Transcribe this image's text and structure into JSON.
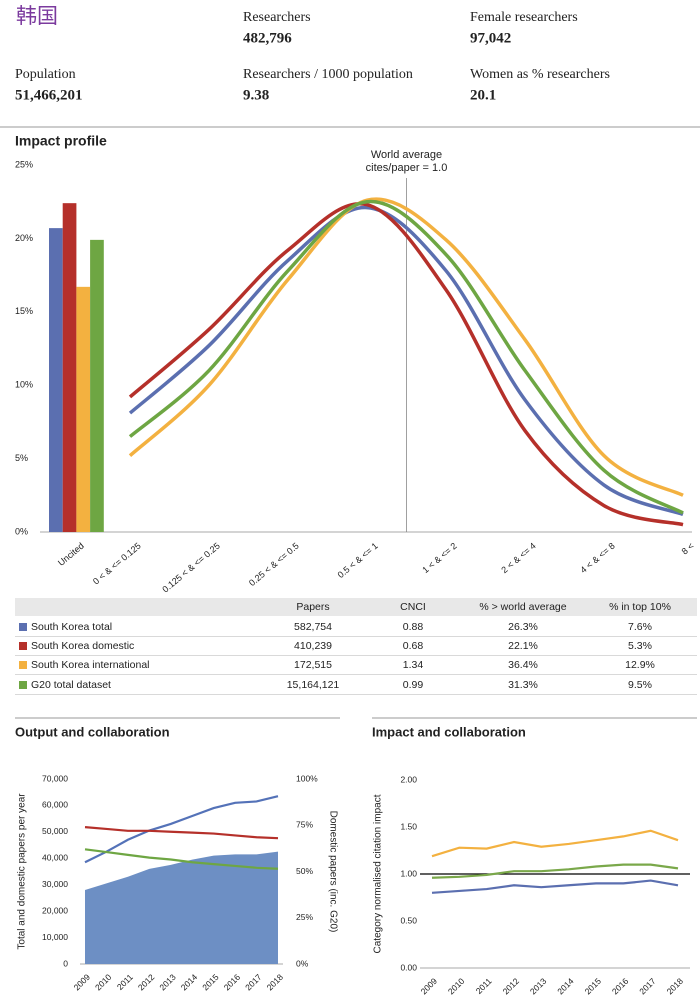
{
  "header": {
    "title": "韩国",
    "stats": [
      {
        "label": "Researchers",
        "value": "482,796"
      },
      {
        "label": "Female researchers",
        "value": "97,042"
      },
      {
        "label": "Population",
        "value": "51,466,201"
      },
      {
        "label": "Researchers / 1000 population",
        "value": "9.38"
      },
      {
        "label": "Women as % researchers",
        "value": "20.1"
      }
    ]
  },
  "chart_data": [
    {
      "type": "combo",
      "title": "Impact profile",
      "annotation": [
        "World average",
        "cites/paper = 1.0"
      ],
      "categories": [
        "Uncited",
        "0 < & <= 0.125",
        "0.125 < & <= 0.25",
        "0.25 < & <= 0.5",
        "0.5 < & <= 1",
        "1 < & <= 2",
        "2 < & <= 4",
        "4 < & <= 8",
        "8 <"
      ],
      "series": [
        {
          "name": "South Korea total",
          "color": "#5b6fb0",
          "values": [
            20.7,
            8.1,
            12.7,
            18.5,
            22.1,
            17.8,
            9.0,
            3.2,
            1.2
          ]
        },
        {
          "name": "South Korea domestic",
          "color": "#b5302a",
          "values": [
            22.4,
            9.2,
            13.8,
            19.2,
            22.3,
            16.5,
            6.9,
            1.8,
            0.5
          ]
        },
        {
          "name": "South Korea international",
          "color": "#f3b140",
          "values": [
            16.7,
            5.2,
            10.0,
            17.2,
            22.6,
            19.9,
            13.1,
            5.2,
            2.5
          ]
        },
        {
          "name": "G20 total dataset",
          "color": "#6ea643",
          "values": [
            19.9,
            6.5,
            11.0,
            17.8,
            22.5,
            18.9,
            11.0,
            4.2,
            1.3
          ]
        }
      ],
      "ylim": [
        0,
        25
      ],
      "yticks": [
        {
          "value": 0,
          "label": "0%"
        },
        {
          "value": 5,
          "label": "5%"
        },
        {
          "value": 10,
          "label": "10%"
        },
        {
          "value": 15,
          "label": "15%"
        },
        {
          "value": 20,
          "label": "20%"
        },
        {
          "value": 25,
          "label": "25%"
        }
      ]
    },
    {
      "type": "line",
      "title": "Output and collaboration",
      "ylabel": "Total and domestic papers per year",
      "y2label": "Domestic papers (inc. G20)",
      "x": [
        2009,
        2010,
        2011,
        2012,
        2013,
        2014,
        2015,
        2016,
        2017,
        2018
      ],
      "xlim": [
        2009,
        2018
      ],
      "series": [
        {
          "color": "#6d8fc4",
          "fill": true,
          "values": [
            28000,
            30500,
            33000,
            36000,
            37500,
            39500,
            41000,
            41500,
            41500,
            42500
          ]
        },
        {
          "color": "#5472b8",
          "values": [
            38500,
            42500,
            47000,
            50500,
            53000,
            56000,
            59000,
            61000,
            61500,
            63500
          ]
        },
        {
          "color": "#b5302a",
          "axis": "y2",
          "values": [
            74,
            73,
            72,
            72,
            71.5,
            71,
            70.5,
            69.5,
            68.5,
            68
          ]
        },
        {
          "color": "#6ea643",
          "axis": "y2",
          "values": [
            62,
            60.5,
            59,
            57.5,
            56.5,
            55,
            54,
            53,
            52,
            51.5
          ]
        }
      ],
      "ylim": [
        0,
        70000
      ],
      "yticks": [
        0,
        {
          "value": 10000,
          "label": "10,000"
        },
        {
          "value": 20000,
          "label": "20,000"
        },
        {
          "value": 30000,
          "label": "30,000"
        },
        {
          "value": 40000,
          "label": "40,000"
        },
        {
          "value": 50000,
          "label": "50,000"
        },
        {
          "value": 60000,
          "label": "60,000"
        },
        {
          "value": 70000,
          "label": "70,000"
        }
      ],
      "y2lim": [
        0,
        100
      ],
      "y2ticks": [
        {
          "value": 0,
          "label": "0%"
        },
        {
          "value": 25,
          "label": "25%"
        },
        {
          "value": 50,
          "label": "50%"
        },
        {
          "value": 75,
          "label": "75%"
        },
        {
          "value": 100,
          "label": "100%"
        }
      ]
    },
    {
      "type": "line",
      "title": "Impact and collaboration",
      "ylabel": "Category normalised citation impact",
      "reference_line": 1,
      "x": [
        2009,
        2010,
        2011,
        2012,
        2013,
        2014,
        2015,
        2016,
        2017,
        2018
      ],
      "xlim": [
        2009,
        2018
      ],
      "series": [
        {
          "color": "#f3b140",
          "values": [
            1.19,
            1.28,
            1.27,
            1.34,
            1.29,
            1.32,
            1.36,
            1.4,
            1.46,
            1.36
          ]
        },
        {
          "color": "#7aa84a",
          "values": [
            0.96,
            0.97,
            0.99,
            1.03,
            1.03,
            1.05,
            1.08,
            1.1,
            1.1,
            1.06
          ]
        },
        {
          "color": "#5b6fb0",
          "values": [
            0.8,
            0.82,
            0.84,
            0.88,
            0.86,
            0.88,
            0.9,
            0.9,
            0.93,
            0.88
          ]
        }
      ],
      "ylim": [
        0,
        2
      ],
      "yticks": [
        {
          "value": 0,
          "label": "0.00"
        },
        {
          "value": 0.5,
          "label": "0.50"
        },
        {
          "value": 1,
          "label": "1.00"
        },
        {
          "value": 1.5,
          "label": "1.50"
        },
        {
          "value": 2,
          "label": "2.00"
        }
      ]
    }
  ],
  "table": {
    "columns": [
      "Papers",
      "CNCI",
      "% > world average",
      "% in top 10%"
    ],
    "rows": [
      [
        "582,754",
        "0.88",
        "26.3%",
        "7.6%"
      ],
      [
        "410,239",
        "0.68",
        "22.1%",
        "5.3%"
      ],
      [
        "172,515",
        "1.34",
        "36.4%",
        "12.9%"
      ],
      [
        "15,164,121",
        "0.99",
        "31.3%",
        "9.5%"
      ]
    ]
  }
}
